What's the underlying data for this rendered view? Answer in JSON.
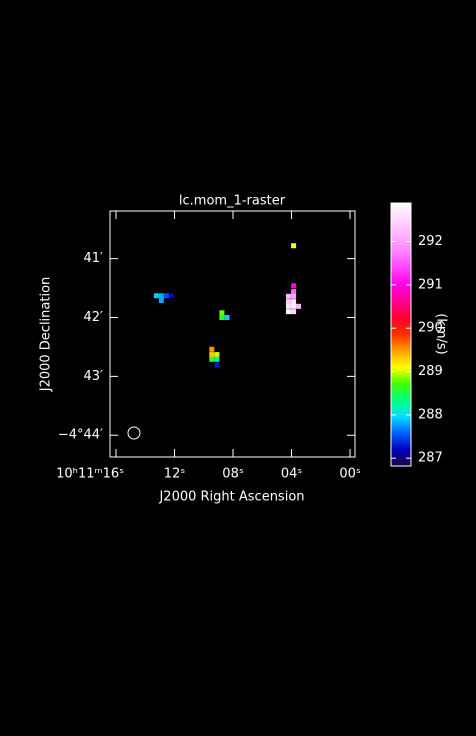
{
  "chart_data": {
    "type": "raster",
    "title": "lc.mom_1-raster",
    "xlabel": "J2000 Right Ascension",
    "ylabel": "J2000 Declination",
    "colorbar_label": "(km/s)",
    "xlim": [
      16.41,
      -0.34
    ],
    "xticks": [
      {
        "value": 16,
        "label": "10ʰ11ᵐ16ˢ"
      },
      {
        "value": 12,
        "label": "12ˢ"
      },
      {
        "value": 8,
        "label": "08ˢ"
      },
      {
        "value": 4,
        "label": "04ˢ"
      },
      {
        "value": 0,
        "label": "00ˢ"
      }
    ],
    "ylim": [
      -44.37,
      -40.19
    ],
    "yticks": [
      {
        "value": -44,
        "label": "−4°44′"
      },
      {
        "value": -43,
        "label": "43′"
      },
      {
        "value": -42,
        "label": "42′"
      },
      {
        "value": -41,
        "label": "41′"
      }
    ],
    "clim": [
      286.82,
      292.89
    ],
    "cticks": [
      287,
      288,
      289,
      290,
      291,
      292
    ],
    "colormap": [
      "#200040",
      "#0000c0",
      "#0060ff",
      "#00e0ff",
      "#00ff80",
      "#40ff00",
      "#ffff00",
      "#ffa000",
      "#ff3000",
      "#ff0030",
      "#ff0090",
      "#ff00e0",
      "#ff40ff",
      "#ff80ff",
      "#ffb0ff",
      "#ffd8ff",
      "#ffffff"
    ],
    "pixels": {
      "x": [
        3.86,
        3.86,
        3.86,
        4.21,
        3.86,
        4.21,
        3.86,
        3.52,
        4.21,
        3.86,
        4.21,
        3.86,
        13.24,
        12.9,
        12.55,
        12.21,
        12.9,
        8.76,
        8.76,
        8.41,
        9.45,
        9.45,
        9.1,
        9.45,
        9.1,
        9.1
      ],
      "y": [
        -40.78,
        -41.46,
        -41.56,
        -41.64,
        -41.64,
        -41.73,
        -41.73,
        -41.81,
        -41.81,
        -41.81,
        -41.9,
        -41.9,
        -41.63,
        -41.63,
        -41.63,
        -41.63,
        -41.71,
        -41.92,
        -42.0,
        -42.0,
        -42.54,
        -42.63,
        -42.63,
        -42.71,
        -42.71,
        -42.81
      ],
      "values": [
        289.1,
        291.0,
        291.6,
        292.2,
        292.0,
        292.4,
        292.6,
        292.2,
        292.6,
        292.8,
        292.9,
        292.5,
        287.9,
        287.8,
        287.5,
        287.2,
        287.8,
        288.8,
        288.6,
        287.9,
        289.5,
        289.3,
        289.0,
        288.6,
        288.3,
        287.3
      ]
    }
  }
}
